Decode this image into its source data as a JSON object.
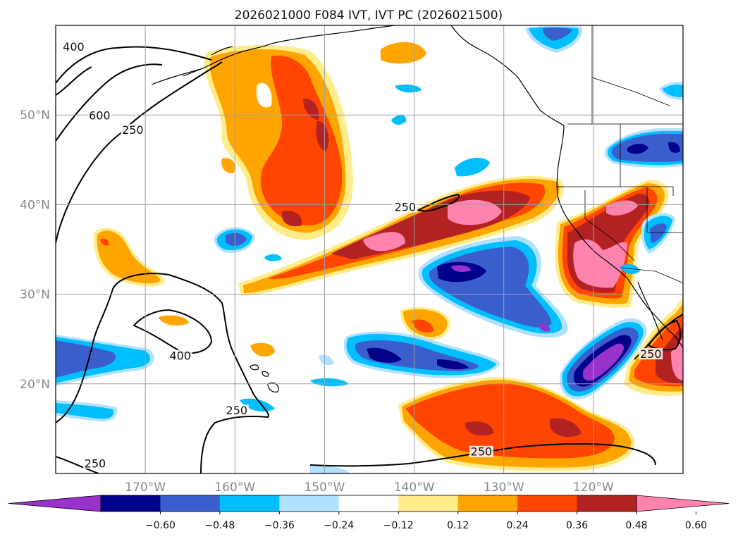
{
  "figure": {
    "title": "2026021000 F084 IVT, IVT PC (2026021500)"
  },
  "map": {
    "projection": "equirectangular",
    "lon_range": [
      -180,
      -110
    ],
    "lat_range": [
      10,
      60
    ],
    "lat_ticks": [
      {
        "value": 20,
        "label": "20°N"
      },
      {
        "value": 30,
        "label": "30°N"
      },
      {
        "value": 40,
        "label": "40°N"
      },
      {
        "value": 50,
        "label": "50°N"
      }
    ],
    "lon_ticks": [
      {
        "value": -170,
        "label": "170°W"
      },
      {
        "value": -160,
        "label": "160°W"
      },
      {
        "value": -150,
        "label": "150°W"
      },
      {
        "value": -140,
        "label": "140°W"
      },
      {
        "value": -130,
        "label": "130°W"
      },
      {
        "value": -120,
        "label": "120°W"
      }
    ],
    "contour_labels": [
      {
        "text": "400",
        "lon": -178,
        "lat": 57.5
      },
      {
        "text": "600",
        "lon": -175.1,
        "lat": 49.8
      },
      {
        "text": "250",
        "lon": -171.4,
        "lat": 48.2
      },
      {
        "text": "250",
        "lon": -141.0,
        "lat": 39.6
      },
      {
        "text": "400",
        "lon": -166.1,
        "lat": 23.0
      },
      {
        "text": "250",
        "lon": -159.8,
        "lat": 16.9
      },
      {
        "text": "250",
        "lon": -175.6,
        "lat": 11.0
      },
      {
        "text": "250",
        "lon": -132.5,
        "lat": 12.3
      },
      {
        "text": "250",
        "lon": -113.6,
        "lat": 23.2
      }
    ]
  },
  "colorbar": {
    "ticks": [
      "−0.60",
      "−0.48",
      "−0.36",
      "−0.24",
      "−0.12",
      "0.12",
      "0.24",
      "0.36",
      "0.48",
      "0.60"
    ],
    "colors": [
      "#9932cc",
      "#00008b",
      "#3a5fcd",
      "#00bfff",
      "#b0e2ff",
      "#ffffff",
      "#ffec8b",
      "#ffa500",
      "#ff4500",
      "#b22222",
      "#ff83af"
    ]
  }
}
